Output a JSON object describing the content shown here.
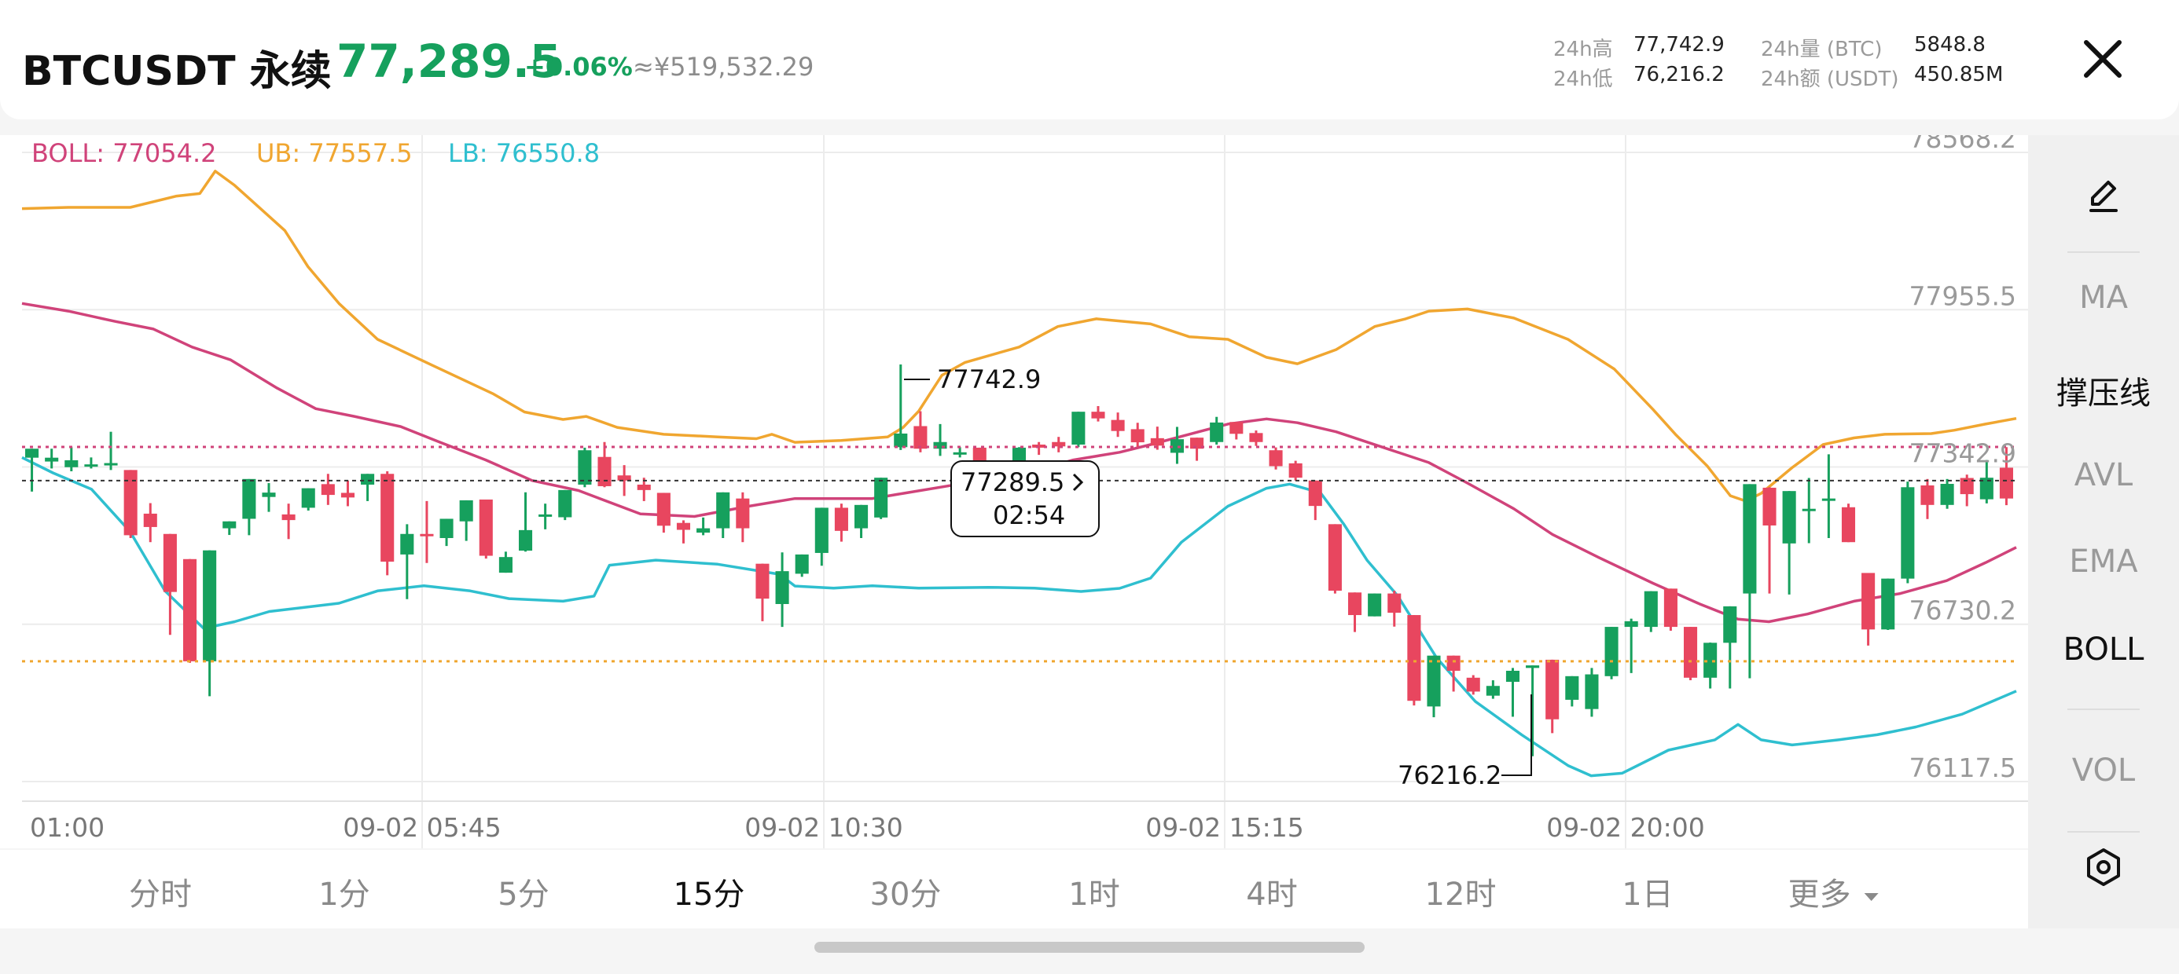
{
  "header": {
    "symbol": "BTCUSDT 永续",
    "price": "77,289.5",
    "change": "+0.06%",
    "cny": "≈¥519,532.29",
    "stats": [
      {
        "label": "24h高",
        "value": "77,742.9"
      },
      {
        "label": "24h低",
        "value": "76,216.2"
      },
      {
        "label": "24h量 (BTC)",
        "value": "5848.8"
      },
      {
        "label": "24h额 (USDT)",
        "value": "450.85M"
      }
    ]
  },
  "legend": {
    "boll": "BOLL: 77054.2",
    "ub": "UB: 77557.5",
    "lb": "LB: 76550.8"
  },
  "side_menu": {
    "ma": "MA",
    "sr": "撑压线",
    "avl": "AVL",
    "ema": "EMA",
    "boll": "BOLL",
    "vol": "VOL"
  },
  "tabs": [
    "分时",
    "1分",
    "5分",
    "15分",
    "30分",
    "1时",
    "4时",
    "12时",
    "1日",
    "更多"
  ],
  "active_tab": "15分",
  "colors": {
    "up": "#16a05d",
    "down": "#e8465f",
    "boll": "#d0437a",
    "ub": "#f0a630",
    "lb": "#2fbfcf"
  },
  "chart_data": {
    "type": "candlestick",
    "indicator": "BOLL",
    "y_ticks": [
      78568.2,
      77955.5,
      77342.9,
      76730.2,
      76117.5
    ],
    "y_range": [
      76117.5,
      78568.2
    ],
    "x_ticks": [
      "01:00",
      "09-02 05:45",
      "09-02 10:30",
      "09-02 15:15",
      "09-02 20:00"
    ],
    "markers": {
      "high": "77742.9",
      "low": "76216.2"
    },
    "current_price": "77289.5",
    "countdown": "02:54",
    "candles": [
      [
        77379,
        77414,
        77268,
        77247
      ],
      [
        77364,
        77379,
        77414,
        77337
      ],
      [
        77342,
        77369,
        77420,
        77326
      ],
      [
        77353,
        77353,
        77380,
        77337
      ],
      [
        77353,
        77358,
        77480,
        77331
      ],
      [
        77331,
        77077,
        77331,
        77066
      ],
      [
        77161,
        77109,
        77202,
        77050
      ],
      [
        77082,
        76856,
        77082,
        76689
      ],
      [
        76984,
        76586,
        76984,
        76580
      ],
      [
        76586,
        77018,
        77018,
        76450
      ],
      [
        77104,
        77131,
        77131,
        77078
      ],
      [
        77141,
        77296,
        77296,
        77077
      ],
      [
        77226,
        77243,
        77280,
        77168
      ],
      [
        77158,
        77136,
        77200,
        77062
      ],
      [
        77184,
        77260,
        77260,
        77173
      ],
      [
        77276,
        77234,
        77316,
        77195
      ],
      [
        77242,
        77224,
        77290,
        77190
      ],
      [
        77274,
        77316,
        77316,
        77210
      ],
      [
        77316,
        76974,
        77326,
        76921
      ],
      [
        77002,
        77082,
        77120,
        76828
      ],
      [
        77082,
        77077,
        77210,
        76969
      ],
      [
        77066,
        77141,
        77141,
        77035
      ],
      [
        77131,
        77213,
        77213,
        77055
      ],
      [
        77216,
        76997,
        77216,
        76986
      ],
      [
        76931,
        76992,
        77013,
        76950
      ],
      [
        77017,
        77097,
        77244,
        77013
      ],
      [
        77158,
        77158,
        77200,
        77100
      ],
      [
        77147,
        77253,
        77253,
        77136
      ],
      [
        77274,
        77408,
        77418,
        77264
      ],
      [
        77382,
        77268,
        77440,
        77264
      ],
      [
        77310,
        77290,
        77350,
        77230
      ],
      [
        77274,
        77253,
        77301,
        77210
      ],
      [
        77242,
        77114,
        77242,
        77087
      ],
      [
        77125,
        77098,
        77135,
        77045
      ],
      [
        77087,
        77104,
        77146,
        77077
      ],
      [
        77104,
        77244,
        77244,
        77066
      ],
      [
        77220,
        77104,
        77244,
        77050
      ],
      [
        76966,
        76830,
        76966,
        76742
      ],
      [
        76809,
        76937,
        77010,
        76720
      ],
      [
        76927,
        77002,
        77002,
        76915
      ],
      [
        77008,
        77184,
        77184,
        76958
      ],
      [
        77184,
        77094,
        77200,
        77052
      ],
      [
        77104,
        77195,
        77195,
        77066
      ],
      [
        77146,
        77301,
        77301,
        77140
      ],
      [
        77420,
        77473,
        77742,
        77409
      ],
      [
        77502,
        77414,
        77560,
        77400
      ],
      [
        77414,
        77440,
        77510,
        77386
      ],
      [
        77400,
        77400,
        77420,
        77380
      ],
      [
        77418,
        77342,
        77418,
        77290
      ],
      [
        77300,
        77300,
        77310,
        77290
      ],
      [
        77342,
        77418,
        77420,
        77338
      ],
      [
        77430,
        77418,
        77440,
        77390
      ],
      [
        77440,
        77423,
        77460,
        77400
      ],
      [
        77430,
        77558,
        77558,
        77420
      ],
      [
        77558,
        77532,
        77580,
        77520
      ],
      [
        77526,
        77483,
        77555,
        77460
      ],
      [
        77490,
        77439,
        77515,
        77420
      ],
      [
        77455,
        77426,
        77500,
        77410
      ],
      [
        77398,
        77451,
        77499,
        77355
      ],
      [
        77457,
        77414,
        77441,
        77367
      ],
      [
        77440,
        77516,
        77538,
        77430
      ],
      [
        77518,
        77472,
        77518,
        77450
      ],
      [
        77475,
        77440,
        77485,
        77425
      ],
      [
        77408,
        77346,
        77419,
        77333
      ],
      [
        77357,
        77301,
        77367,
        77290
      ],
      [
        77290,
        77191,
        77290,
        77136
      ],
      [
        77120,
        76861,
        77120,
        76850
      ],
      [
        76854,
        76766,
        76854,
        76700
      ],
      [
        76761,
        76850,
        76850,
        76830
      ],
      [
        76850,
        76775,
        76861,
        76721
      ],
      [
        76766,
        76432,
        76766,
        76414
      ],
      [
        76410,
        76608,
        76608,
        76368
      ],
      [
        76608,
        76549,
        76608,
        76468
      ],
      [
        76522,
        76468,
        76532,
        76456
      ],
      [
        76452,
        76490,
        76512,
        76440
      ],
      [
        76506,
        76549,
        76560,
        76370
      ],
      [
        76560,
        76570,
        76570,
        76216
      ],
      [
        76592,
        76360,
        76592,
        76306
      ],
      [
        76436,
        76528,
        76522,
        76410
      ],
      [
        76400,
        76535,
        76560,
        76370
      ],
      [
        76528,
        76720,
        76720,
        76516
      ],
      [
        76720,
        76742,
        76752,
        76540
      ],
      [
        76720,
        76859,
        76859,
        76700
      ],
      [
        76869,
        76720,
        76869,
        76705
      ],
      [
        76720,
        76522,
        76720,
        76512
      ],
      [
        76522,
        76658,
        76659,
        76480
      ],
      [
        76658,
        76800,
        76800,
        76480
      ],
      [
        76850,
        77276,
        77276,
        76520
      ],
      [
        77262,
        77115,
        77264,
        76850
      ],
      [
        77045,
        77249,
        77249,
        76846
      ],
      [
        77173,
        77180,
        77300,
        77046
      ],
      [
        77220,
        77220,
        77392,
        77066
      ],
      [
        77186,
        77050,
        77200,
        77050
      ],
      [
        76930,
        76710,
        76930,
        76647
      ],
      [
        76710,
        76908,
        76908,
        76708
      ],
      [
        76908,
        77264,
        77286,
        76890
      ],
      [
        77271,
        77195,
        77296,
        77140
      ],
      [
        77195,
        77277,
        77296,
        77180
      ],
      [
        77300,
        77237,
        77313,
        77190
      ],
      [
        77217,
        77301,
        77370,
        77201
      ],
      [
        77340,
        77220,
        77420,
        77194
      ]
    ],
    "ub": [
      [
        0,
        78349
      ],
      [
        60,
        78354
      ],
      [
        140,
        78354
      ],
      [
        200,
        78398
      ],
      [
        230,
        78408
      ],
      [
        250,
        78495
      ],
      [
        275,
        78440
      ],
      [
        340,
        78264
      ],
      [
        370,
        78123
      ],
      [
        410,
        77980
      ],
      [
        460,
        77840
      ],
      [
        530,
        77740
      ],
      [
        610,
        77627
      ],
      [
        650,
        77557
      ],
      [
        700,
        77528
      ],
      [
        730,
        77540
      ],
      [
        770,
        77497
      ],
      [
        830,
        77470
      ],
      [
        900,
        77460
      ],
      [
        950,
        77453
      ],
      [
        970,
        77470
      ],
      [
        1000,
        77439
      ],
      [
        1060,
        77446
      ],
      [
        1120,
        77460
      ],
      [
        1140,
        77497
      ],
      [
        1160,
        77560
      ],
      [
        1190,
        77700
      ],
      [
        1220,
        77750
      ],
      [
        1290,
        77810
      ],
      [
        1340,
        77890
      ],
      [
        1390,
        77920
      ],
      [
        1460,
        77900
      ],
      [
        1510,
        77850
      ],
      [
        1560,
        77840
      ],
      [
        1610,
        77770
      ],
      [
        1650,
        77745
      ],
      [
        1700,
        77800
      ],
      [
        1750,
        77890
      ],
      [
        1790,
        77920
      ],
      [
        1820,
        77950
      ],
      [
        1870,
        77958
      ],
      [
        1930,
        77923
      ],
      [
        2000,
        77840
      ],
      [
        2060,
        77724
      ],
      [
        2110,
        77567
      ],
      [
        2140,
        77467
      ],
      [
        2180,
        77347
      ],
      [
        2210,
        77231
      ],
      [
        2230,
        77210
      ],
      [
        2250,
        77240
      ],
      [
        2290,
        77340
      ],
      [
        2330,
        77430
      ],
      [
        2370,
        77456
      ],
      [
        2410,
        77470
      ],
      [
        2470,
        77473
      ],
      [
        2500,
        77486
      ],
      [
        2540,
        77510
      ],
      [
        2580,
        77532
      ]
    ],
    "boll": [
      [
        0,
        77980
      ],
      [
        60,
        77950
      ],
      [
        120,
        77910
      ],
      [
        170,
        77880
      ],
      [
        220,
        77810
      ],
      [
        270,
        77760
      ],
      [
        330,
        77650
      ],
      [
        380,
        77570
      ],
      [
        430,
        77540
      ],
      [
        490,
        77500
      ],
      [
        540,
        77440
      ],
      [
        600,
        77370
      ],
      [
        660,
        77290
      ],
      [
        720,
        77251
      ],
      [
        800,
        77160
      ],
      [
        870,
        77150
      ],
      [
        940,
        77190
      ],
      [
        1000,
        77220
      ],
      [
        1040,
        77220
      ],
      [
        1100,
        77220
      ],
      [
        1140,
        77240
      ],
      [
        1200,
        77270
      ],
      [
        1260,
        77300
      ],
      [
        1300,
        77320
      ],
      [
        1360,
        77370
      ],
      [
        1420,
        77400
      ],
      [
        1460,
        77430
      ],
      [
        1510,
        77470
      ],
      [
        1560,
        77510
      ],
      [
        1610,
        77530
      ],
      [
        1650,
        77515
      ],
      [
        1700,
        77480
      ],
      [
        1760,
        77420
      ],
      [
        1820,
        77360
      ],
      [
        1870,
        77280
      ],
      [
        1930,
        77180
      ],
      [
        1980,
        77080
      ],
      [
        2040,
        76990
      ],
      [
        2110,
        76890
      ],
      [
        2170,
        76810
      ],
      [
        2220,
        76750
      ],
      [
        2260,
        76740
      ],
      [
        2310,
        76770
      ],
      [
        2370,
        76820
      ],
      [
        2430,
        76850
      ],
      [
        2490,
        76900
      ],
      [
        2540,
        76970
      ],
      [
        2580,
        77030
      ]
    ],
    "lb": [
      [
        0,
        77380
      ],
      [
        40,
        77320
      ],
      [
        90,
        77256
      ],
      [
        140,
        77090
      ],
      [
        185,
        76860
      ],
      [
        235,
        76714
      ],
      [
        275,
        76740
      ],
      [
        320,
        76780
      ],
      [
        360,
        76794
      ],
      [
        410,
        76812
      ],
      [
        460,
        76860
      ],
      [
        520,
        76880
      ],
      [
        580,
        76860
      ],
      [
        630,
        76830
      ],
      [
        700,
        76820
      ],
      [
        740,
        76840
      ],
      [
        760,
        76960
      ],
      [
        820,
        76980
      ],
      [
        900,
        76964
      ],
      [
        980,
        76925
      ],
      [
        1000,
        76879
      ],
      [
        1050,
        76871
      ],
      [
        1100,
        76880
      ],
      [
        1160,
        76871
      ],
      [
        1250,
        76874
      ],
      [
        1310,
        76871
      ],
      [
        1370,
        76858
      ],
      [
        1420,
        76870
      ],
      [
        1460,
        76910
      ],
      [
        1500,
        77050
      ],
      [
        1560,
        77190
      ],
      [
        1610,
        77260
      ],
      [
        1640,
        77276
      ],
      [
        1680,
        77242
      ],
      [
        1710,
        77120
      ],
      [
        1740,
        76980
      ],
      [
        1780,
        76840
      ],
      [
        1830,
        76600
      ],
      [
        1880,
        76430
      ],
      [
        1940,
        76300
      ],
      [
        2000,
        76180
      ],
      [
        2030,
        76140
      ],
      [
        2070,
        76150
      ],
      [
        2130,
        76240
      ],
      [
        2190,
        76280
      ],
      [
        2220,
        76340
      ],
      [
        2250,
        76280
      ],
      [
        2290,
        76260
      ],
      [
        2350,
        76280
      ],
      [
        2400,
        76300
      ],
      [
        2450,
        76330
      ],
      [
        2510,
        76380
      ],
      [
        2580,
        76470
      ]
    ]
  }
}
